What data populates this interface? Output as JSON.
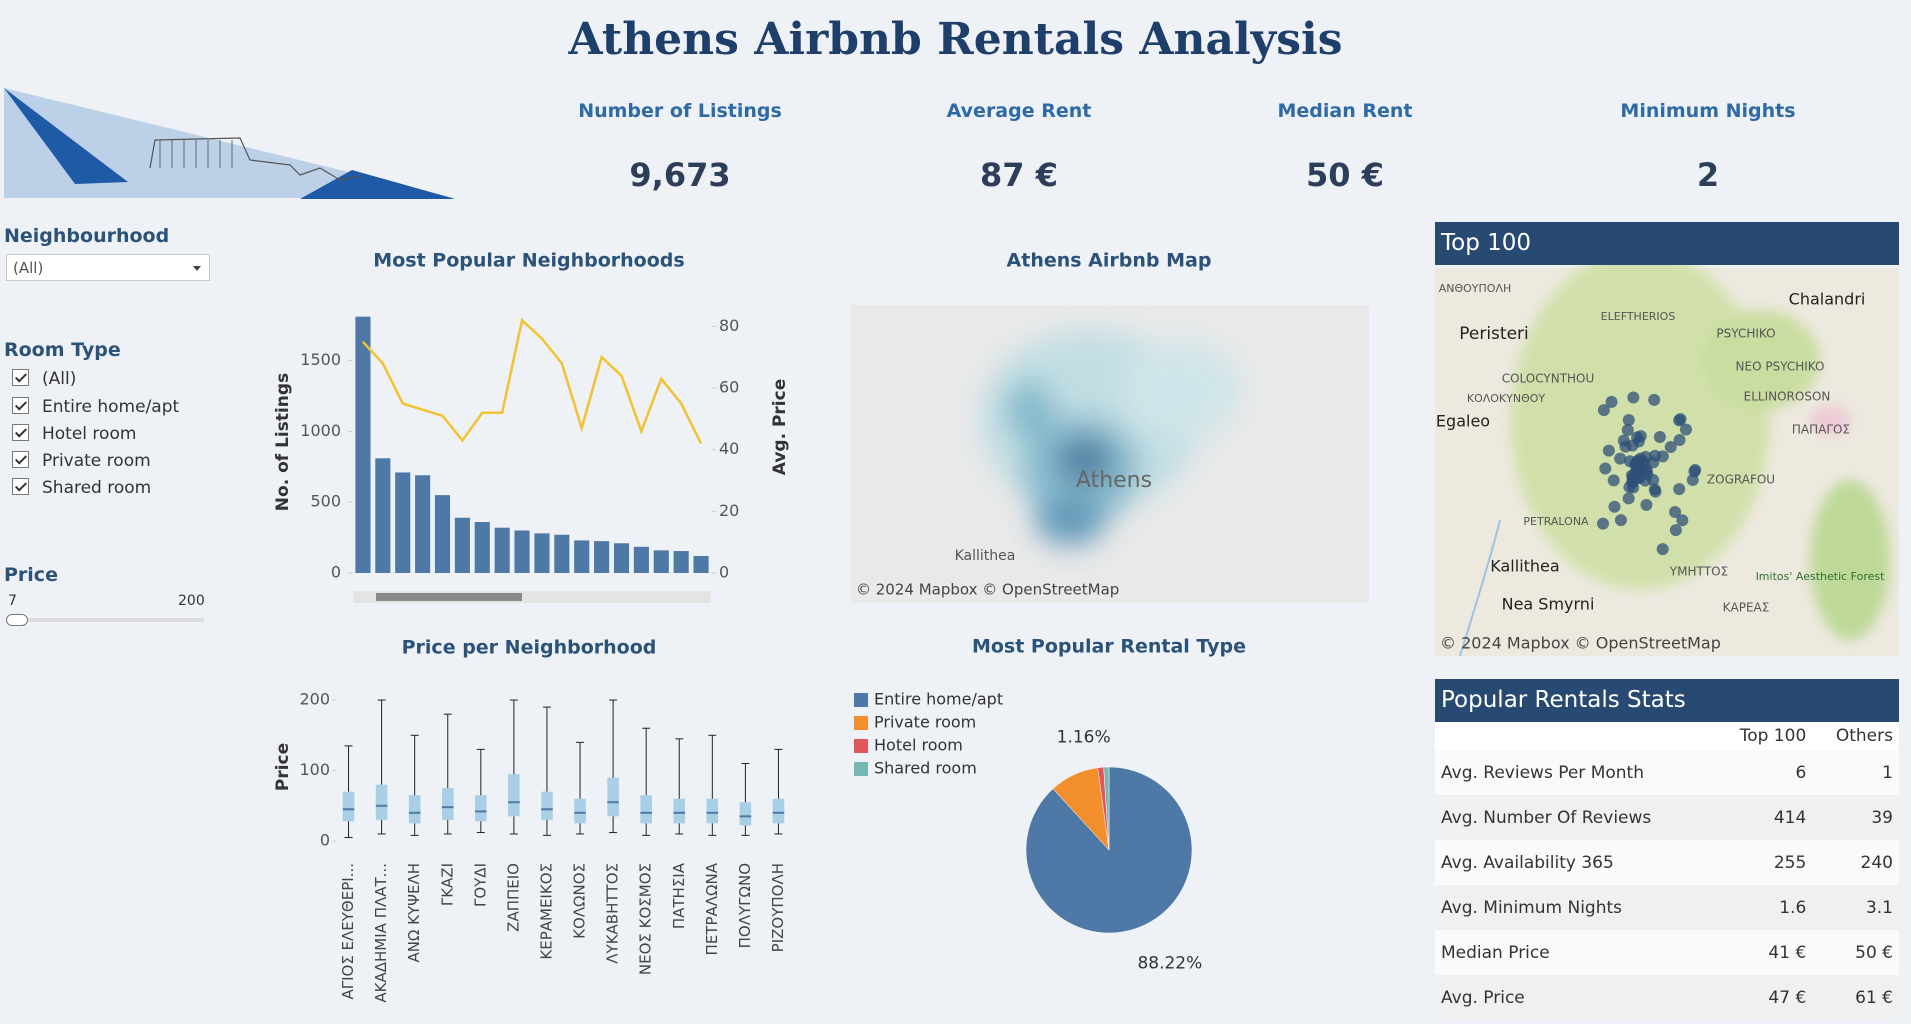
{
  "header": {
    "title": "Athens Airbnb Rentals Analysis"
  },
  "kpis": [
    {
      "label": "Number of Listings",
      "value": "9,673"
    },
    {
      "label": "Average Rent",
      "value": "87 €"
    },
    {
      "label": "Median Rent",
      "value": "50 €"
    },
    {
      "label": "Minimum Nights",
      "value": "2"
    }
  ],
  "filters": {
    "neighbourhood": {
      "label": "Neighbourhood",
      "selected": "(All)"
    },
    "room_type": {
      "label": "Room Type",
      "options": [
        "(All)",
        "Entire home/apt",
        "Hotel room",
        "Private room",
        "Shared room"
      ]
    },
    "price": {
      "label": "Price",
      "min": "7",
      "max": "200"
    }
  },
  "chart_data": [
    {
      "type": "bar",
      "title": "Most Popular Neighborhoods",
      "ylabel": "No. of Listings",
      "y2label": "Avg. Price",
      "categories": [
        null,
        null,
        null,
        null,
        null,
        null,
        null,
        null,
        null,
        null,
        null,
        null,
        null,
        null,
        null,
        null,
        null,
        null
      ],
      "series": [
        {
          "color": "#4e79a7",
          "values": [
            1810,
            810,
            710,
            690,
            550,
            390,
            360,
            320,
            300,
            280,
            270,
            230,
            225,
            210,
            185,
            160,
            155,
            120
          ]
        },
        {
          "type": "line",
          "axis": "y2",
          "color": "#f1c232",
          "values": [
            75,
            68,
            55,
            53,
            51,
            43,
            52,
            52,
            82,
            76,
            68,
            47,
            70,
            64,
            46,
            63,
            55,
            42
          ]
        }
      ],
      "ylim": [
        0,
        1850
      ],
      "yticks": [
        0,
        500,
        1000,
        1500
      ],
      "y2lim": [
        0,
        85
      ],
      "y2ticks": [
        0,
        20,
        40,
        60,
        80
      ],
      "grid": false
    },
    {
      "type": "box",
      "title": "Price per Neighborhood",
      "ylabel": "Price",
      "categories": [
        "ΑΓΙΟΣ ΕΛΕΥΘΕΡΙ...",
        "ΑΚΑΔΗΜΙΑ ΠΛΑΤ...",
        "ΑΝΩ ΚΥΨΕΛΗ",
        "ΓΚΑΖΙ",
        "ΓΟΥΔΙ",
        "ΖΑΠΠΕΙΟ",
        "ΚΕΡΑΜΕΙΚΟΣ",
        "ΚΟΛΩΝΟΣ",
        "ΛΥΚΑΒΗΤΤΟΣ",
        "ΝΕΟΣ ΚΟΣΜΟΣ",
        "ΠΑΤΗΣΙΑ",
        "ΠΕΤΡΑΛΩΝΑ",
        "ΠΟΛΥΓΩΝΟ",
        "ΡΙΖΟΥΠΟΛΗ"
      ],
      "min": [
        5,
        10,
        8,
        10,
        12,
        10,
        8,
        10,
        12,
        8,
        10,
        8,
        8,
        10
      ],
      "q1": [
        28,
        30,
        25,
        30,
        28,
        35,
        30,
        25,
        35,
        25,
        25,
        25,
        22,
        25
      ],
      "median": [
        45,
        50,
        40,
        48,
        42,
        55,
        45,
        40,
        55,
        40,
        40,
        40,
        35,
        40
      ],
      "q3": [
        70,
        80,
        65,
        75,
        65,
        95,
        70,
        60,
        90,
        65,
        60,
        60,
        55,
        60
      ],
      "max": [
        135,
        200,
        150,
        180,
        130,
        200,
        190,
        140,
        200,
        160,
        145,
        150,
        110,
        130
      ],
      "color": "#a9cfe6",
      "ylim": [
        0,
        210
      ],
      "yticks": [
        0,
        100,
        200
      ]
    },
    {
      "type": "pie",
      "title": "Most Popular Rental Type",
      "categories": [
        "Entire home/apt",
        "Private room",
        "Hotel room",
        "Shared room"
      ],
      "values": [
        88.22,
        9.6,
        1.16,
        1.02
      ],
      "value_labels": [
        "88.22%",
        null,
        "1.16%",
        null
      ],
      "colors": [
        "#4e79a7",
        "#f28e2b",
        "#e15759",
        "#76b7b2"
      ]
    }
  ],
  "maps": [
    {
      "title": "Athens Airbnb Map",
      "labels": [
        "Athens",
        "Kallithea"
      ],
      "attribution": "© 2024 Mapbox © OpenStreetMap"
    },
    {
      "title": "Top 100",
      "labels": [
        "Peristeri",
        "Chalandri",
        "Egaleo",
        "Kallithea",
        "Nea Smyrni",
        "PSYCHIKO",
        "NEO PSYCHIKO",
        "ZOGRAFOU",
        "ΠΑΠΑΓΟΣ",
        "ΥΜΗΤΤΟΣ",
        "ΚΑΡΕΑΣ",
        "Imitos' Aesthetic Forest",
        "ΑΝΘΟΥΠΟΛΗ",
        "ELEFTHERIOS",
        "COLOCYNTHOU",
        "ΚΟΛΟΚΥΝΘΟΥ",
        "ELLINOROSON",
        "PETRALONA"
      ],
      "attribution": "© 2024 Mapbox © OpenStreetMap"
    }
  ],
  "table": {
    "title": "Popular Rentals Stats",
    "columns": [
      "Top 100",
      "Others"
    ],
    "rows": [
      [
        "Avg. Reviews Per Month",
        "6",
        "1"
      ],
      [
        "Avg. Number Of Reviews",
        "414",
        "39"
      ],
      [
        "Avg. Availability 365",
        "255",
        "240"
      ],
      [
        "Avg. Minimum Nights",
        "1.6",
        "3.1"
      ],
      [
        "Median Price",
        "41 €",
        "50 €"
      ],
      [
        "Avg. Price",
        "47 €",
        "61 €"
      ]
    ]
  }
}
